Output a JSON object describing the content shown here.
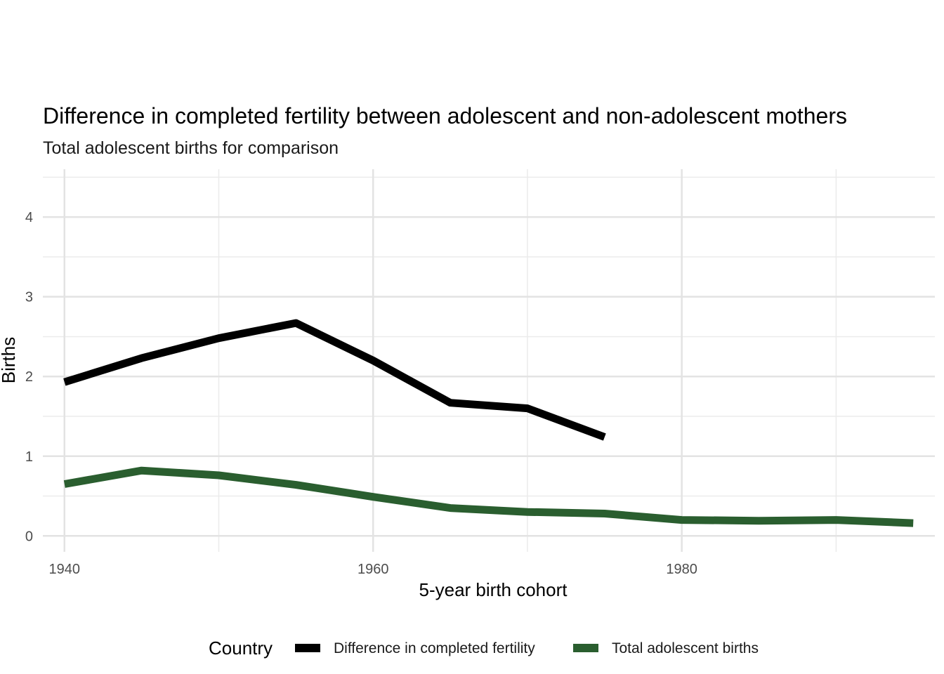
{
  "chart_data": {
    "type": "line",
    "title": "Difference in completed fertility between adolescent and non-adolescent mothers",
    "subtitle": "Total adolescent births for comparison",
    "xlabel": "5-year birth cohort",
    "ylabel": "Births",
    "xlim": [
      1938.6,
      1996.4
    ],
    "ylim": [
      -0.2,
      4.6
    ],
    "x_ticks": [
      1940,
      1960,
      1980
    ],
    "y_ticks": [
      0,
      1,
      2,
      3,
      4
    ],
    "grid": true,
    "legend": {
      "title": "Country",
      "position": "bottom"
    },
    "series": [
      {
        "name": "Difference in completed fertility",
        "color": "#000000",
        "x": [
          1940,
          1945,
          1950,
          1955,
          1960,
          1965,
          1970,
          1975
        ],
        "y": [
          1.93,
          2.23,
          2.48,
          2.67,
          2.2,
          1.67,
          1.6,
          1.24
        ]
      },
      {
        "name": "Total adolescent births",
        "color": "#2a5e2f",
        "x": [
          1940,
          1945,
          1950,
          1955,
          1960,
          1965,
          1970,
          1975,
          1980,
          1985,
          1990,
          1995
        ],
        "y": [
          0.65,
          0.82,
          0.76,
          0.64,
          0.49,
          0.35,
          0.3,
          0.28,
          0.2,
          0.19,
          0.2,
          0.16
        ]
      }
    ]
  }
}
